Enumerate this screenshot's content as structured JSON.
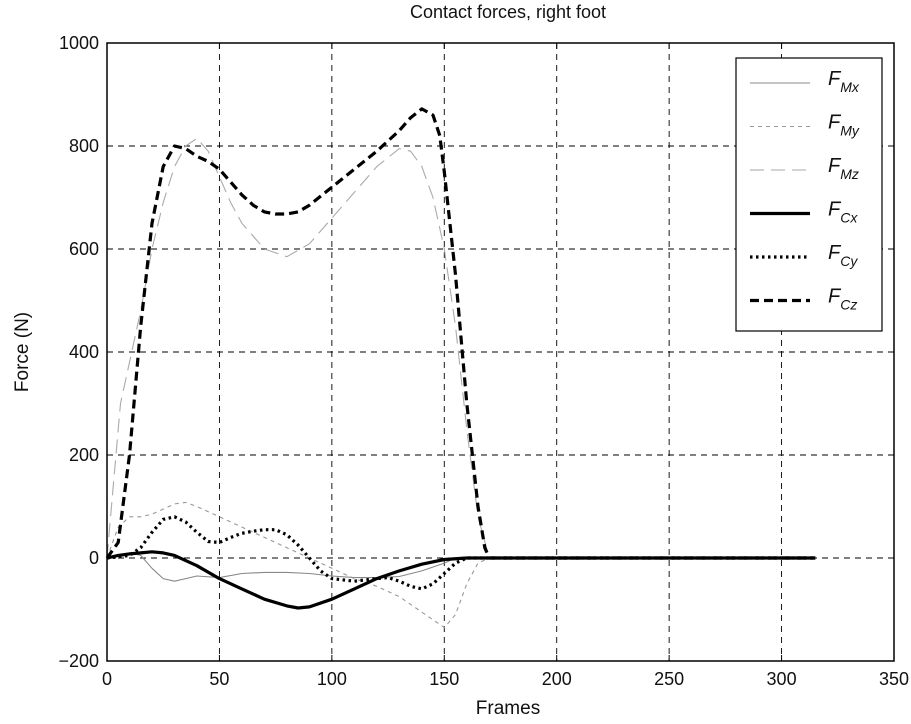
{
  "chart_data": {
    "type": "line",
    "title": "Contact forces, right foot",
    "xlabel": "Frames",
    "ylabel": "Force (N)",
    "xlim": [
      0,
      350
    ],
    "ylim": [
      -200,
      1000
    ],
    "xticks": [
      0,
      50,
      100,
      150,
      200,
      250,
      300,
      350
    ],
    "yticks": [
      -200,
      0,
      200,
      400,
      600,
      800,
      1000
    ],
    "xtick_labels": [
      "0",
      "50",
      "100",
      "150",
      "200",
      "250",
      "300",
      "350"
    ],
    "ytick_labels": [
      "−200",
      "0",
      "200",
      "400",
      "600",
      "800",
      "1000"
    ],
    "grid": true,
    "legend_position": "top-right",
    "series": [
      {
        "name": "F_Mx",
        "legend_main": "F",
        "legend_sub": "Mx",
        "style": "thin-solid",
        "color": "#888888",
        "x": [
          0,
          5,
          10,
          15,
          20,
          25,
          30,
          35,
          40,
          50,
          60,
          70,
          80,
          90,
          100,
          110,
          120,
          130,
          140,
          150,
          155,
          160,
          170,
          200,
          250,
          300,
          315
        ],
        "y": [
          0,
          5,
          10,
          5,
          -20,
          -40,
          -45,
          -40,
          -35,
          -38,
          -30,
          -28,
          -28,
          -30,
          -35,
          -38,
          -38,
          -36,
          -25,
          -10,
          0,
          2,
          0,
          0,
          0,
          0,
          0
        ]
      },
      {
        "name": "F_My",
        "legend_main": "F",
        "legend_sub": "My",
        "style": "thin-dashed",
        "color": "#999999",
        "x": [
          0,
          5,
          10,
          15,
          20,
          25,
          30,
          35,
          40,
          50,
          60,
          70,
          80,
          90,
          100,
          110,
          120,
          130,
          140,
          145,
          150,
          155,
          160,
          165,
          170,
          200,
          250,
          300,
          315
        ],
        "y": [
          0,
          60,
          80,
          80,
          85,
          95,
          105,
          108,
          100,
          80,
          60,
          40,
          20,
          0,
          -20,
          -40,
          -55,
          -75,
          -105,
          -120,
          -135,
          -110,
          -50,
          -10,
          0,
          0,
          0,
          0,
          0
        ]
      },
      {
        "name": "F_Mz",
        "legend_main": "F",
        "legend_sub": "Mz",
        "style": "thin-longdash",
        "color": "#aaaaaa",
        "x": [
          0,
          3,
          6,
          10,
          15,
          20,
          25,
          30,
          35,
          40,
          45,
          50,
          55,
          60,
          70,
          80,
          90,
          100,
          110,
          120,
          130,
          135,
          140,
          145,
          150,
          155,
          160,
          165,
          170,
          200,
          250,
          300,
          315
        ],
        "y": [
          0,
          150,
          300,
          380,
          480,
          600,
          690,
          760,
          800,
          815,
          790,
          740,
          690,
          650,
          600,
          585,
          610,
          660,
          710,
          760,
          795,
          790,
          760,
          700,
          600,
          450,
          250,
          80,
          0,
          0,
          0,
          0,
          0
        ]
      },
      {
        "name": "F_Cx",
        "legend_main": "F",
        "legend_sub": "Cx",
        "style": "thick-solid",
        "color": "#000000",
        "x": [
          0,
          5,
          10,
          15,
          20,
          25,
          30,
          35,
          40,
          50,
          60,
          70,
          80,
          85,
          90,
          100,
          110,
          120,
          130,
          140,
          150,
          160,
          170,
          200,
          250,
          300,
          315
        ],
        "y": [
          0,
          5,
          8,
          10,
          12,
          10,
          5,
          -5,
          -15,
          -40,
          -60,
          -80,
          -93,
          -97,
          -95,
          -80,
          -60,
          -40,
          -25,
          -12,
          -3,
          0,
          0,
          0,
          0,
          0,
          0
        ]
      },
      {
        "name": "F_Cy",
        "legend_main": "F",
        "legend_sub": "Cy",
        "style": "thick-dotted",
        "color": "#000000",
        "x": [
          0,
          5,
          10,
          15,
          20,
          25,
          30,
          35,
          40,
          45,
          50,
          55,
          60,
          65,
          70,
          75,
          80,
          85,
          90,
          95,
          100,
          110,
          120,
          125,
          130,
          135,
          140,
          145,
          150,
          155,
          160,
          170,
          200,
          250,
          300,
          315
        ],
        "y": [
          0,
          2,
          5,
          20,
          50,
          75,
          80,
          70,
          50,
          32,
          30,
          40,
          48,
          52,
          55,
          55,
          45,
          25,
          0,
          -25,
          -40,
          -45,
          -40,
          -38,
          -45,
          -55,
          -60,
          -50,
          -30,
          -10,
          0,
          0,
          0,
          0,
          0,
          0
        ]
      },
      {
        "name": "F_Cz",
        "legend_main": "F",
        "legend_sub": "Cz",
        "style": "thick-dashed",
        "color": "#000000",
        "x": [
          0,
          5,
          10,
          15,
          20,
          25,
          30,
          35,
          40,
          45,
          50,
          55,
          60,
          65,
          70,
          75,
          80,
          85,
          90,
          100,
          110,
          120,
          130,
          135,
          140,
          145,
          148,
          150,
          155,
          160,
          165,
          168,
          170,
          200,
          250,
          300,
          315
        ],
        "y": [
          0,
          30,
          200,
          450,
          650,
          760,
          800,
          795,
          780,
          770,
          755,
          730,
          705,
          685,
          672,
          668,
          668,
          672,
          685,
          720,
          755,
          790,
          830,
          855,
          872,
          860,
          820,
          750,
          550,
          300,
          100,
          20,
          0,
          0,
          0,
          0,
          0
        ]
      }
    ]
  }
}
